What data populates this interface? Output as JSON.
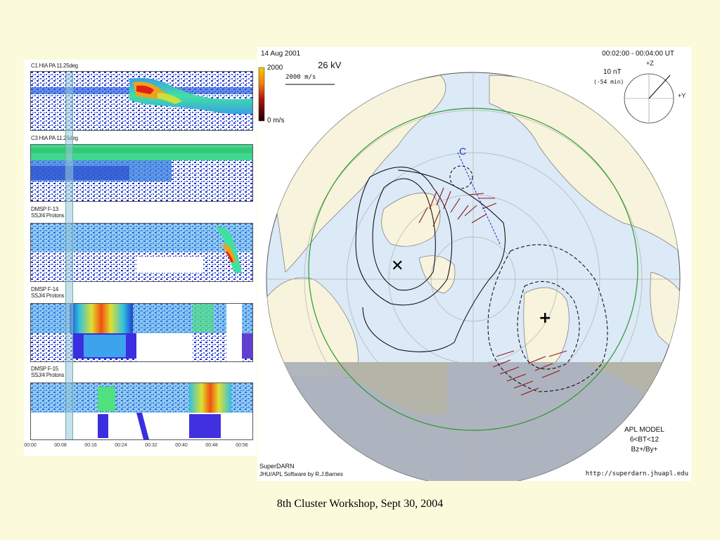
{
  "footer": "8th Cluster Workshop, Sept 30, 2004",
  "left_panel": {
    "strips": [
      {
        "label_lines": [
          "C1 HIA PA 11.25deg"
        ]
      },
      {
        "label_lines": [
          "C3 HIA PA 11.25deg"
        ]
      },
      {
        "label_lines": [
          "DMSP F-13",
          "SSJ/4 Protons"
        ]
      },
      {
        "label_lines": [
          "DMSP F-14",
          "SSJ/4 Protons"
        ]
      },
      {
        "label_lines": [
          "DMSP F-15",
          "SSJ/4 Protons"
        ]
      }
    ],
    "time_ticks": [
      "00:00",
      "00:08",
      "00:16",
      "00:24",
      "00:32",
      "00:40",
      "00:48",
      "00:56"
    ]
  },
  "map": {
    "date": "14 Aug 2001",
    "time_range": "00:02:00 - 00:04:00 UT",
    "potential": "26 kV",
    "velocity_scale": {
      "max": "2000",
      "min": "0 m/s",
      "vector_label": "2000 m/s"
    },
    "imf": {
      "magnitude": "10 nT",
      "delay": "(-54 min)",
      "z_label": "+Z",
      "y_label": "+Y"
    },
    "c_label": "C",
    "model": {
      "line1": "APL MODEL",
      "line2": "6<BT<12",
      "line3": "Bz+/By+"
    },
    "credit_line1": "SuperDARN",
    "credit_line2": "JHU/APL Software by R.J.Barnes",
    "url": "http://superdarn.jhuapl.edu",
    "colors": {
      "page_bg": "#fbfbdc",
      "ocean": "#dce9f7",
      "land": "#f7f3dc",
      "night": "#a8aeb8",
      "green_circle": "#2a9a2a"
    }
  }
}
